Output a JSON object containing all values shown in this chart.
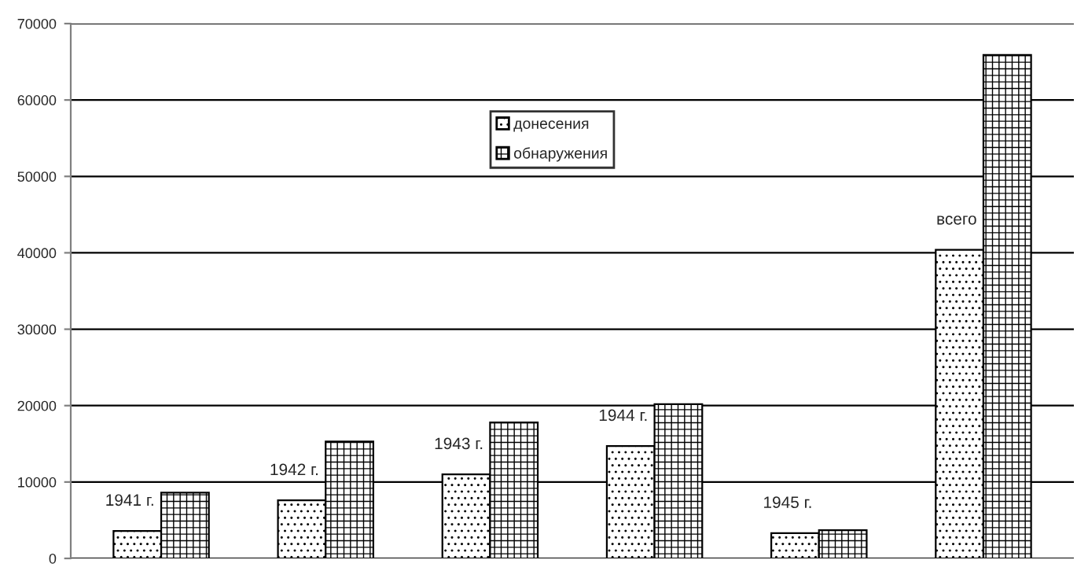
{
  "chart_data": {
    "type": "bar",
    "categories": [
      "1941 г.",
      "1942 г.",
      "1943 г.",
      "1944 г.",
      "1945 г.",
      "всего"
    ],
    "series": [
      {
        "name": "донесения",
        "color": "#000000",
        "values": [
          3600,
          7600,
          11000,
          14700,
          3300,
          40400
        ]
      },
      {
        "name": "обнаружения",
        "color": "#000000",
        "values": [
          8600,
          15300,
          17800,
          20200,
          3700,
          65900
        ]
      }
    ],
    "ylim": [
      0,
      70000
    ],
    "yticks": [
      0,
      10000,
      20000,
      30000,
      40000,
      50000,
      60000,
      70000
    ],
    "grid": "y",
    "legend": "top"
  }
}
